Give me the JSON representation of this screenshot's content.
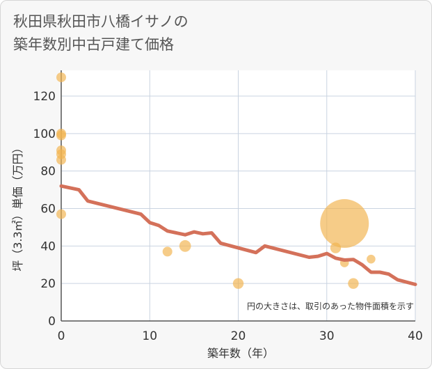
{
  "title": "秋田県秋田市八橋イサノの\n築年数別中古戸建て価格",
  "chart_data": {
    "type": "scatter",
    "title": "秋田県秋田市八橋イサノの築年数別中古戸建て価格",
    "xlabel": "築年数（年）",
    "ylabel": "坪（3.3㎡）単価（万円）",
    "xlim": [
      0,
      40
    ],
    "ylim": [
      0,
      130
    ],
    "x_ticks": [
      0,
      10,
      20,
      30,
      40
    ],
    "y_ticks": [
      0,
      20,
      40,
      60,
      80,
      100,
      120
    ],
    "grid": true,
    "note": "円の大きさは、取引のあった物件面積を示す",
    "colors": {
      "points": "#f2b44f",
      "trend": "#d4715a"
    },
    "points": [
      {
        "x": 0,
        "y": 130,
        "size": 1
      },
      {
        "x": 0,
        "y": 100,
        "size": 1
      },
      {
        "x": 0,
        "y": 99,
        "size": 1
      },
      {
        "x": 0,
        "y": 91,
        "size": 1
      },
      {
        "x": 0,
        "y": 89,
        "size": 1
      },
      {
        "x": 0,
        "y": 86,
        "size": 1
      },
      {
        "x": 0,
        "y": 57,
        "size": 1
      },
      {
        "x": 12,
        "y": 37,
        "size": 1
      },
      {
        "x": 14,
        "y": 40,
        "size": 1.2
      },
      {
        "x": 20,
        "y": 20,
        "size": 1.1
      },
      {
        "x": 31,
        "y": 39,
        "size": 1.1
      },
      {
        "x": 32,
        "y": 52,
        "size": 5
      },
      {
        "x": 32,
        "y": 31,
        "size": 0.9
      },
      {
        "x": 33,
        "y": 20,
        "size": 1.1
      },
      {
        "x": 35,
        "y": 33,
        "size": 0.9
      }
    ],
    "trend": [
      {
        "x": 0,
        "y": 72
      },
      {
        "x": 2,
        "y": 70
      },
      {
        "x": 3,
        "y": 64
      },
      {
        "x": 9,
        "y": 57
      },
      {
        "x": 10,
        "y": 52.5
      },
      {
        "x": 11,
        "y": 51
      },
      {
        "x": 12,
        "y": 48
      },
      {
        "x": 14,
        "y": 46
      },
      {
        "x": 15,
        "y": 47.5
      },
      {
        "x": 16,
        "y": 46.5
      },
      {
        "x": 17,
        "y": 47
      },
      {
        "x": 18,
        "y": 41.5
      },
      {
        "x": 22,
        "y": 36.5
      },
      {
        "x": 23,
        "y": 40
      },
      {
        "x": 28,
        "y": 34
      },
      {
        "x": 29,
        "y": 34.5
      },
      {
        "x": 30,
        "y": 36
      },
      {
        "x": 31,
        "y": 33.5
      },
      {
        "x": 32,
        "y": 32.5
      },
      {
        "x": 33,
        "y": 32.8
      },
      {
        "x": 34,
        "y": 30
      },
      {
        "x": 35,
        "y": 26
      },
      {
        "x": 36,
        "y": 26
      },
      {
        "x": 37,
        "y": 25
      },
      {
        "x": 38,
        "y": 22
      },
      {
        "x": 40,
        "y": 19.5
      }
    ]
  }
}
